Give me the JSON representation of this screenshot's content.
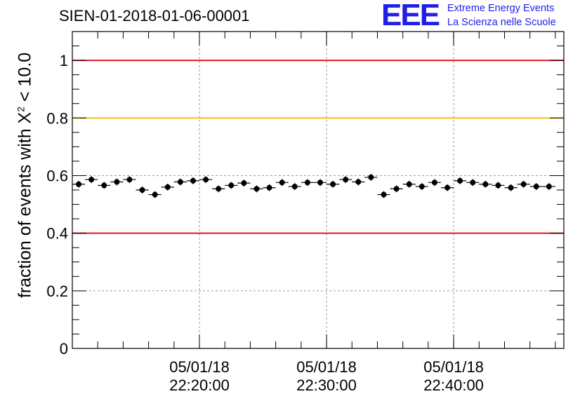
{
  "title": "SIEN-01-2018-01-06-00001",
  "logo": {
    "mark": "EEE",
    "line1": "Extreme Energy Events",
    "line2": "La Scienza nelle Scuole"
  },
  "colors": {
    "threshold_red": "#e8141e",
    "threshold_yellow": "#ffc000",
    "points": "#000000",
    "grid": "#999999",
    "logo": "#1f1fe8"
  },
  "chart_data": {
    "type": "scatter",
    "title": "SIEN-01-2018-01-06-00001",
    "ylabel_prefix": "fraction of events with X",
    "ylabel_sup": "2",
    "ylabel_suffix": " < 10.0",
    "xlabel": "",
    "ylim": [
      0,
      1.1
    ],
    "x_range": [
      "05/01/18 22:10:00",
      "05/01/18 22:48:40"
    ],
    "bin_width_seconds": 60,
    "y_ticks": [
      "0",
      "0.2",
      "0.4",
      "0.6",
      "0.8",
      "1"
    ],
    "x_ticks": [
      {
        "date": "05/01/18",
        "time": "22:20:00"
      },
      {
        "date": "05/01/18",
        "time": "22:30:00"
      },
      {
        "date": "05/01/18",
        "time": "22:40:00"
      }
    ],
    "grid": true,
    "reference_lines": [
      {
        "y": 1.0,
        "color": "#e8141e"
      },
      {
        "y": 0.8,
        "color": "#ffc000"
      },
      {
        "y": 0.4,
        "color": "#e8141e"
      }
    ],
    "series": [
      {
        "x": [
          "22:10:30",
          "22:11:30",
          "22:12:30",
          "22:13:30",
          "22:14:30",
          "22:15:30",
          "22:16:30",
          "22:17:30",
          "22:18:30",
          "22:19:30",
          "22:20:30",
          "22:21:30",
          "22:22:30",
          "22:23:30",
          "22:24:30",
          "22:25:30",
          "22:26:30",
          "22:27:30",
          "22:28:30",
          "22:29:30",
          "22:30:30",
          "22:31:30",
          "22:32:30",
          "22:33:30",
          "22:34:30",
          "22:35:30",
          "22:36:30",
          "22:37:30",
          "22:38:30",
          "22:39:30",
          "22:40:30",
          "22:41:30",
          "22:42:30",
          "22:43:30",
          "22:44:30",
          "22:45:30",
          "22:46:30",
          "22:47:30"
        ],
        "values": [
          0.57,
          0.586,
          0.566,
          0.578,
          0.586,
          0.55,
          0.534,
          0.56,
          0.578,
          0.582,
          0.586,
          0.554,
          0.566,
          0.574,
          0.554,
          0.558,
          0.576,
          0.562,
          0.576,
          0.576,
          0.57,
          0.586,
          0.578,
          0.594,
          0.534,
          0.554,
          0.57,
          0.562,
          0.576,
          0.558,
          0.582,
          0.576,
          0.57,
          0.566,
          0.558,
          0.57,
          0.562,
          0.562
        ],
        "errors": [
          0.012,
          0.012,
          0.012,
          0.012,
          0.012,
          0.012,
          0.012,
          0.012,
          0.012,
          0.012,
          0.012,
          0.012,
          0.012,
          0.012,
          0.012,
          0.012,
          0.012,
          0.012,
          0.012,
          0.012,
          0.012,
          0.012,
          0.012,
          0.012,
          0.012,
          0.012,
          0.012,
          0.012,
          0.012,
          0.012,
          0.012,
          0.012,
          0.012,
          0.012,
          0.012,
          0.012,
          0.012,
          0.012
        ]
      }
    ]
  }
}
